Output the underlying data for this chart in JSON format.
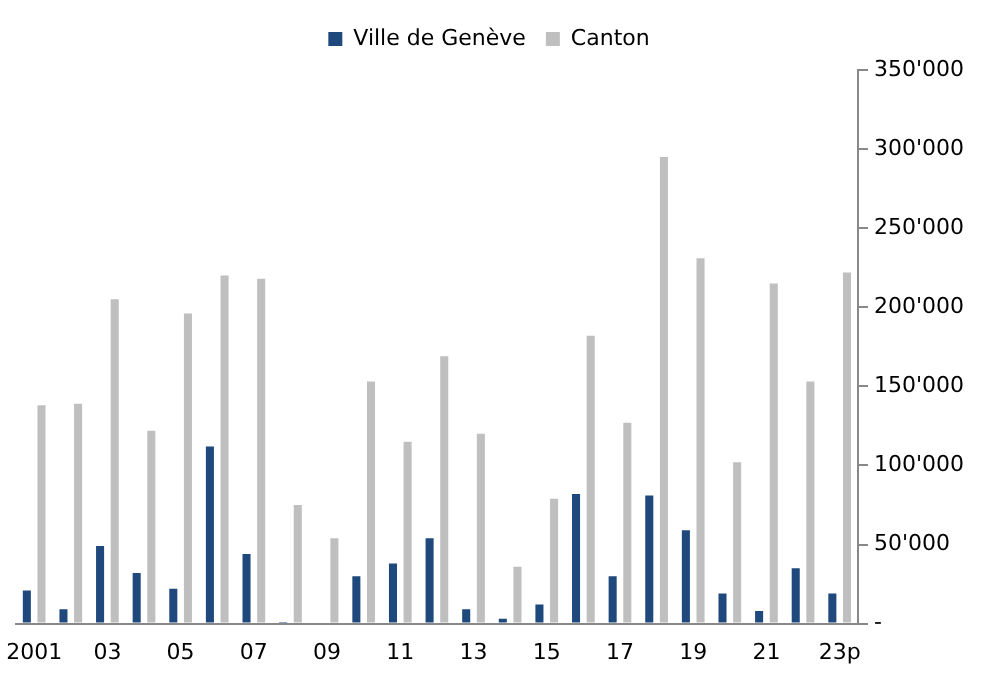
{
  "chart_data": {
    "type": "bar",
    "categories": [
      "2001",
      null,
      "03",
      null,
      "05",
      null,
      "07",
      null,
      "09",
      null,
      "11",
      null,
      "13",
      null,
      "15",
      null,
      "17",
      null,
      "19",
      null,
      "21",
      null,
      "23p"
    ],
    "series": [
      {
        "name": "Ville de Genève",
        "color": "#1f497d",
        "values": [
          21000,
          9000,
          49000,
          32000,
          22000,
          112000,
          44000,
          1000,
          0,
          30000,
          38000,
          54000,
          9000,
          3000,
          12000,
          82000,
          30000,
          81000,
          59000,
          19000,
          8000,
          35000,
          19000
        ]
      },
      {
        "name": "Canton",
        "color": "#bfbfbf",
        "values": [
          138000,
          139000,
          205000,
          122000,
          196000,
          220000,
          218000,
          75000,
          54000,
          153000,
          115000,
          169000,
          120000,
          36000,
          79000,
          182000,
          127000,
          295000,
          231000,
          102000,
          215000,
          153000,
          222000
        ]
      }
    ],
    "ylim": [
      0,
      350000
    ],
    "yticks": [
      {
        "value": 0,
        "label": "-"
      },
      {
        "value": 50000,
        "label": "50'000"
      },
      {
        "value": 100000,
        "label": "100'000"
      },
      {
        "value": 150000,
        "label": "150'000"
      },
      {
        "value": 200000,
        "label": "200'000"
      },
      {
        "value": 250000,
        "label": "250'000"
      },
      {
        "value": 300000,
        "label": "300'000"
      },
      {
        "value": 350000,
        "label": "350'000"
      }
    ],
    "grid": false,
    "legend": "top"
  }
}
